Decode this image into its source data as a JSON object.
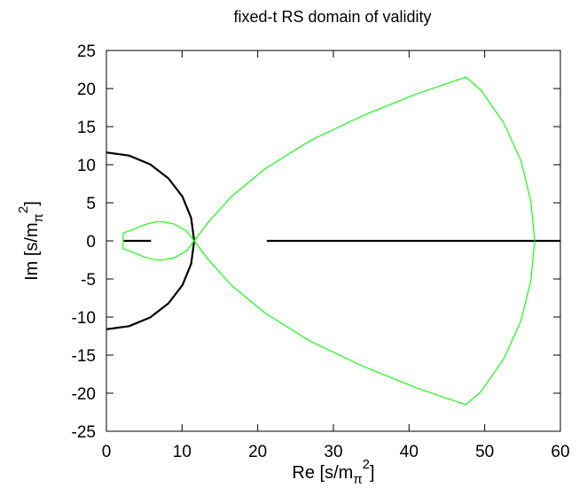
{
  "chart_data": {
    "type": "line",
    "title": "fixed-t RS domain of validity",
    "xlabel": "Re [s/m",
    "xlabel_sub": "π",
    "xlabel_sup": "2",
    "xlabel_tail": "]",
    "ylabel": "Im [s/m",
    "ylabel_sub": "π",
    "ylabel_sup": "2",
    "ylabel_tail": "]",
    "xlim": [
      0,
      60
    ],
    "ylim": [
      -25,
      25
    ],
    "xticks": [
      "0",
      "10",
      "20",
      "30",
      "40",
      "50",
      "60"
    ],
    "yticks": [
      "25",
      "20",
      "15",
      "10",
      "5",
      "0",
      "-5",
      "-10",
      "-15",
      "-20",
      "-25"
    ],
    "grid": false,
    "legend": "none",
    "series": [
      {
        "color": "#000000",
        "style": "semicircle",
        "points": [
          [
            0,
            11.6
          ],
          [
            3.0,
            11.2
          ],
          [
            5.8,
            10.05
          ],
          [
            8.2,
            8.2
          ],
          [
            10.05,
            5.8
          ],
          [
            11.2,
            3.0
          ],
          [
            11.6,
            0
          ],
          [
            11.2,
            -3.0
          ],
          [
            10.05,
            -5.8
          ],
          [
            8.2,
            -8.2
          ],
          [
            5.8,
            -10.05
          ],
          [
            3.0,
            -11.2
          ],
          [
            0,
            -11.6
          ]
        ]
      },
      {
        "color": "#000000",
        "style": "segment",
        "points": [
          [
            2.3,
            0
          ],
          [
            5.9,
            0
          ]
        ]
      },
      {
        "color": "#000000",
        "style": "segment",
        "points": [
          [
            21.2,
            0
          ],
          [
            60,
            0
          ]
        ]
      },
      {
        "color": "#00ff00",
        "style": "small-loop",
        "points": [
          [
            11.6,
            0
          ],
          [
            10.6,
            1.3
          ],
          [
            9.0,
            2.2
          ],
          [
            7.5,
            2.5
          ],
          [
            6.5,
            2.5
          ],
          [
            5.0,
            2.1
          ],
          [
            3.5,
            1.5
          ],
          [
            2.2,
            1.0
          ],
          [
            2.2,
            -1.0
          ],
          [
            3.5,
            -1.5
          ],
          [
            5.0,
            -2.1
          ],
          [
            6.5,
            -2.5
          ],
          [
            7.5,
            -2.5
          ],
          [
            9.0,
            -2.2
          ],
          [
            10.6,
            -1.3
          ],
          [
            11.6,
            0
          ]
        ]
      },
      {
        "color": "#00ff00",
        "style": "large-region",
        "points": [
          [
            11.6,
            0
          ],
          [
            13.5,
            2.5
          ],
          [
            16.5,
            5.8
          ],
          [
            21.0,
            9.5
          ],
          [
            27.0,
            13.2
          ],
          [
            34.0,
            16.5
          ],
          [
            41.0,
            19.3
          ],
          [
            46.0,
            21.0
          ],
          [
            47.5,
            21.5
          ],
          [
            49.5,
            19.8
          ],
          [
            52.5,
            15.5
          ],
          [
            54.8,
            10.5
          ],
          [
            56.1,
            5.2
          ],
          [
            56.6,
            0
          ],
          [
            56.1,
            -5.2
          ],
          [
            54.8,
            -10.5
          ],
          [
            52.5,
            -15.5
          ],
          [
            49.5,
            -19.8
          ],
          [
            47.5,
            -21.5
          ],
          [
            46.0,
            -21.0
          ],
          [
            41.0,
            -19.3
          ],
          [
            34.0,
            -16.5
          ],
          [
            27.0,
            -13.2
          ],
          [
            21.0,
            -9.5
          ],
          [
            16.5,
            -5.8
          ],
          [
            13.5,
            -2.5
          ],
          [
            11.6,
            0
          ]
        ]
      }
    ]
  }
}
